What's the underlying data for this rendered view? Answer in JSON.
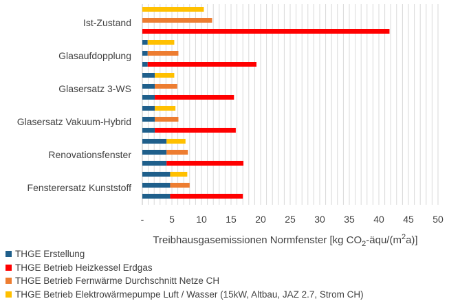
{
  "chart_data": {
    "type": "bar",
    "orientation": "horizontal",
    "grouped": true,
    "categories": [
      "Ist-Zustand",
      "Glasaufdopplung",
      "Glasersatz 3-WS",
      "Glasersatz Vakuum-Hybrid",
      "Renovationsfenster",
      "Fensterersatz Kunststoff"
    ],
    "x_tick_labels": [
      "-",
      "5",
      "10",
      "15",
      "20",
      "25",
      "30",
      "35",
      "40",
      "45",
      "50"
    ],
    "xlim": [
      0,
      50
    ],
    "grid": true,
    "xlabel_parts": [
      "Treibhausgasemissionen Normfenster [kg CO",
      "2",
      "-äqu/(m",
      "2",
      "a)]"
    ],
    "legend_placement": "bottom",
    "embodied": {
      "name": "THGE Erstellung",
      "color": "#1f5f8b",
      "values": [
        0,
        0.9,
        2.1,
        2.1,
        4.1,
        4.7
      ]
    },
    "series": [
      {
        "name": "THGE Betrieb Elektrowärmepumpe Luft / Wasser (15kW, Altbau, JAZ 2.7, Strom CH)",
        "color": "#ffc000",
        "totals": [
          10.4,
          5.4,
          5.4,
          5.6,
          7.3,
          7.6
        ]
      },
      {
        "name": "THGE Betrieb Fernwärme Durchschnitt Netze CH",
        "color": "#ed7d31",
        "totals": [
          11.8,
          6.1,
          5.9,
          6.1,
          7.7,
          8.0
        ]
      },
      {
        "name": "THGE Betrieb Heizkessel Erdgas",
        "color": "#ff0000",
        "totals": [
          41.8,
          19.3,
          15.5,
          15.8,
          17.1,
          17.0
        ]
      }
    ],
    "legend_order": [
      "THGE Erstellung",
      "THGE Betrieb Heizkessel Erdgas",
      "THGE Betrieb Fernwärme Durchschnitt Netze CH",
      "THGE Betrieb Elektrowärmepumpe Luft / Wasser (15kW, Altbau, JAZ 2.7, Strom CH)"
    ]
  }
}
